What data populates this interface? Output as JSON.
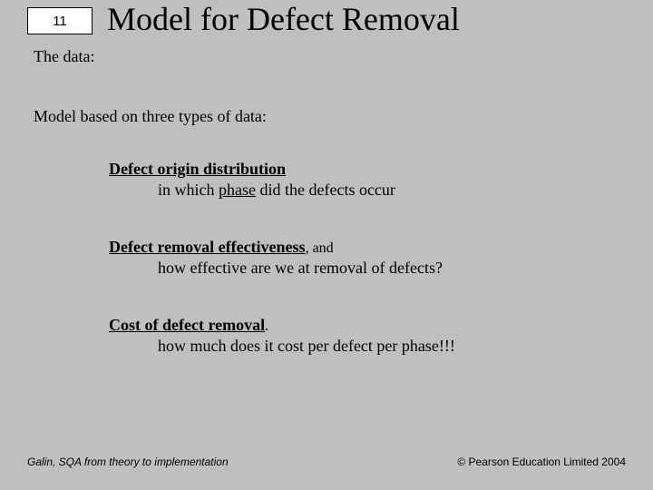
{
  "page_number": "11",
  "title": "Model for Defect Removal",
  "subtitle": "The data:",
  "intro": "Model based on three types of data:",
  "items": [
    {
      "heading": "Defect origin distribution",
      "trail": "",
      "sub_pre": "in which ",
      "sub_emph": "phase",
      "sub_post": " did the defects occur"
    },
    {
      "heading": "Defect removal effectiveness",
      "trail": ", and",
      "sub_pre": "how effective are we at removal of defects?",
      "sub_emph": "",
      "sub_post": ""
    },
    {
      "heading": "Cost of defect removal",
      "trail": ".",
      "sub_pre": "how much does it cost per defect per phase!!!",
      "sub_emph": "",
      "sub_post": ""
    }
  ],
  "footer_left": "Galin, SQA from theory to implementation",
  "footer_right": "© Pearson Education Limited 2004",
  "colors": {
    "background": "#bfbfbf",
    "text": "#000000",
    "page_box_bg": "#ffffff"
  }
}
